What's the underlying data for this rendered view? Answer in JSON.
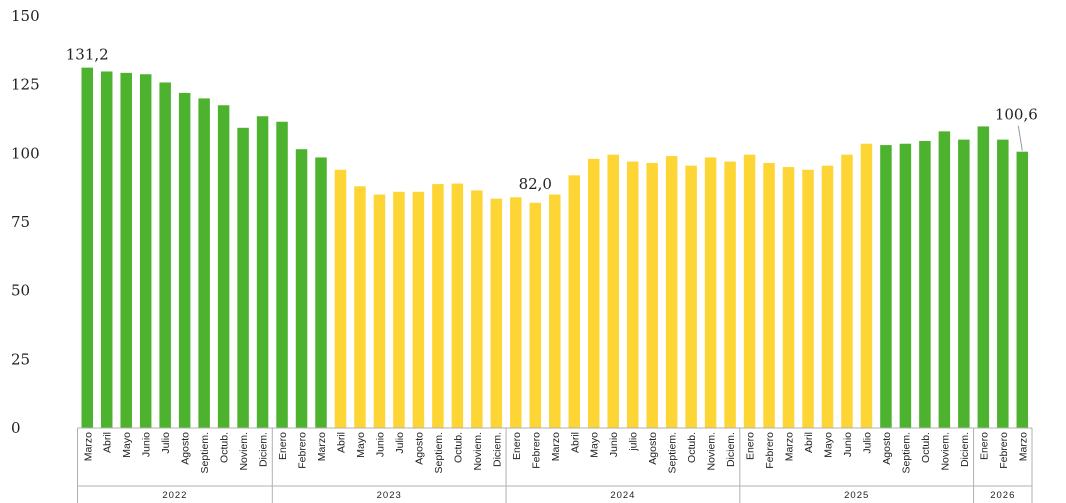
{
  "chart_data": {
    "type": "bar",
    "title": "",
    "xlabel": "",
    "ylabel": "",
    "ylim": [
      0,
      150
    ],
    "yticks": [
      0,
      25,
      50,
      75,
      100,
      125,
      150
    ],
    "grid": false,
    "colors": {
      "green": "#4db22e",
      "yellow": "#fdd535"
    },
    "categories": [
      "Marzo",
      "Abril",
      "Mayo",
      "Junio",
      "Julio",
      "Agosto",
      "Septiem.",
      "Octub.",
      "Noviem.",
      "Diciem.",
      "Enero",
      "Febrero",
      "Marzo",
      "Abril",
      "Mayo",
      "Junio",
      "Julio",
      "Agosto",
      "Septiem.",
      "Octub.",
      "Noviem.",
      "Diciem.",
      "Enero",
      "Febrero",
      "Marzo",
      "Abril",
      "Mayo",
      "Junio",
      "julio",
      "Agosto",
      "Septiem.",
      "Octub.",
      "Noviem.",
      "Diciem.",
      "Enero",
      "Febrero",
      "Marzo",
      "Abril",
      "Mayo",
      "Junio",
      "Julio",
      "Agosto",
      "Septiem.",
      "Octub.",
      "Noviem.",
      "Diciem.",
      "Enero",
      "Febrero",
      "Marzo"
    ],
    "values": [
      131.2,
      129.8,
      129.3,
      128.8,
      125.8,
      122,
      120,
      117.5,
      109.3,
      113.5,
      111.5,
      101.5,
      98.5,
      94,
      88,
      85,
      86,
      86,
      88.8,
      89,
      86.5,
      83.5,
      84,
      82,
      85,
      92,
      98,
      99.5,
      97,
      96.5,
      99,
      95.5,
      98.5,
      97,
      99.5,
      96.5,
      95,
      94,
      95.5,
      99.5,
      103.5,
      103,
      103.5,
      104.5,
      108,
      105,
      109.8,
      105,
      100.6
    ],
    "bar_colors": [
      "green",
      "green",
      "green",
      "green",
      "green",
      "green",
      "green",
      "green",
      "green",
      "green",
      "green",
      "green",
      "green",
      "yellow",
      "yellow",
      "yellow",
      "yellow",
      "yellow",
      "yellow",
      "yellow",
      "yellow",
      "yellow",
      "yellow",
      "yellow",
      "yellow",
      "yellow",
      "yellow",
      "yellow",
      "yellow",
      "yellow",
      "yellow",
      "yellow",
      "yellow",
      "yellow",
      "yellow",
      "yellow",
      "yellow",
      "yellow",
      "yellow",
      "yellow",
      "yellow",
      "green",
      "green",
      "green",
      "green",
      "green",
      "green",
      "green",
      "green"
    ],
    "years": [
      {
        "label": "2022",
        "start": 0,
        "end": 9
      },
      {
        "label": "2023",
        "start": 10,
        "end": 21
      },
      {
        "label": "2024",
        "start": 22,
        "end": 33
      },
      {
        "label": "2025",
        "start": 34,
        "end": 45
      },
      {
        "label": "2026",
        "start": 46,
        "end": 48
      }
    ],
    "data_labels": [
      {
        "index": 0,
        "text": "131,2"
      },
      {
        "index": 23,
        "text": "82,0"
      },
      {
        "index": 48,
        "text": "100,6"
      }
    ]
  }
}
